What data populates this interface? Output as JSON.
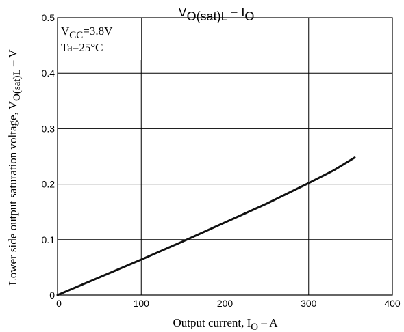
{
  "chart_data": {
    "type": "line",
    "title": {
      "base": "V",
      "sub": "O(sat)L",
      "mid": " − I",
      "sub2": "O"
    },
    "xlabel": {
      "prefix": "Output current, I",
      "sub": "O",
      "suffix": " – A"
    },
    "ylabel": {
      "prefix": "Lower side output saturation voltage, V",
      "sub": "O(sat)L",
      "suffix": " – V"
    },
    "annotations": [
      {
        "base": "V",
        "sub": "CC",
        "rest": "=3.8V"
      },
      {
        "text": "Ta=25°C"
      }
    ],
    "xlim": [
      0,
      400
    ],
    "ylim": [
      0,
      0.5
    ],
    "x_ticks": [
      0,
      100,
      200,
      300,
      400
    ],
    "x_tick_labels": [
      "0",
      "100",
      "200",
      "300",
      "400"
    ],
    "y_ticks": [
      0,
      0.1,
      0.2,
      0.3,
      0.4,
      0.5
    ],
    "y_tick_labels": [
      "0",
      "0.1",
      "0.2",
      "0.3",
      "0.4",
      "0.5"
    ],
    "grid": true,
    "series": [
      {
        "x": [
          0,
          50,
          100,
          150,
          200,
          250,
          300,
          330,
          355
        ],
        "y": [
          0,
          0.032,
          0.064,
          0.097,
          0.131,
          0.165,
          0.202,
          0.225,
          0.248
        ]
      }
    ]
  }
}
